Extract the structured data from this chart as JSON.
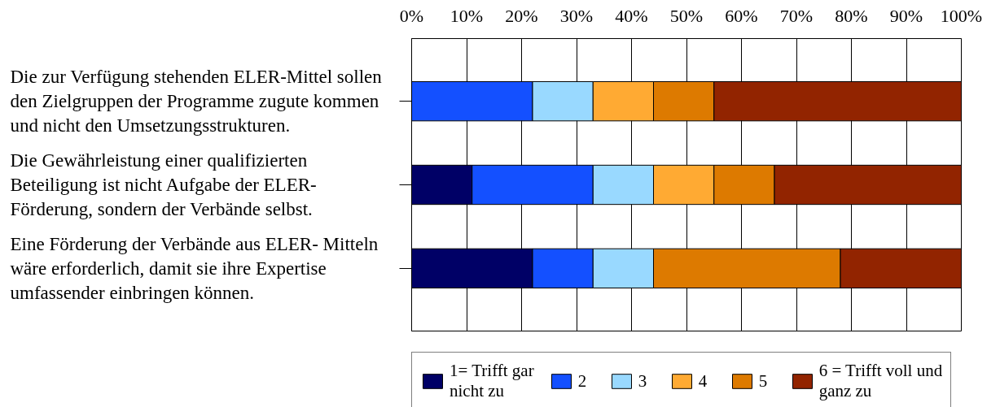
{
  "chart_data": {
    "type": "bar",
    "orientation": "horizontal",
    "stacked": true,
    "categories": [
      "Die zur Verfügung stehenden ELER-Mittel sollen\nden Zielgruppen der Programme zugute kommen\nund nicht den Umsetzungsstrukturen.",
      "Die Gewährleistung einer qualifizierten\nBeteiligung ist nicht Aufgabe der ELER-\nFörderung, sondern der Verbände selbst.",
      "Eine Förderung der Verbände aus ELER- Mitteln\nwäre erforderlich, damit sie ihre Expertise\numfassender einbringen können."
    ],
    "series": [
      {
        "name": "1= Trifft gar\nnicht zu",
        "color": "#000066",
        "values": [
          0,
          11,
          22
        ]
      },
      {
        "name": "2",
        "color": "#1450ff",
        "values": [
          22,
          22,
          11
        ]
      },
      {
        "name": "3",
        "color": "#99d9ff",
        "values": [
          11,
          11,
          11
        ]
      },
      {
        "name": "4",
        "color": "#ffaa33",
        "values": [
          11,
          11,
          0
        ]
      },
      {
        "name": "5",
        "color": "#dd7a00",
        "values": [
          11,
          11,
          34
        ]
      },
      {
        "name": "6 = Trifft voll und\nganz zu",
        "color": "#922400",
        "values": [
          45,
          34,
          22
        ]
      }
    ],
    "xlim": [
      0,
      100
    ],
    "xticks": [
      {
        "value": 0,
        "label": "0%"
      },
      {
        "value": 10,
        "label": "10%"
      },
      {
        "value": 20,
        "label": "20%"
      },
      {
        "value": 30,
        "label": "30%"
      },
      {
        "value": 40,
        "label": "40%"
      },
      {
        "value": 50,
        "label": "50%"
      },
      {
        "value": 60,
        "label": "60%"
      },
      {
        "value": 70,
        "label": "70%"
      },
      {
        "value": 80,
        "label": "80%"
      },
      {
        "value": 90,
        "label": "90%"
      },
      {
        "value": 100,
        "label": "100%"
      }
    ],
    "grid": "x",
    "legend": "bottom"
  }
}
